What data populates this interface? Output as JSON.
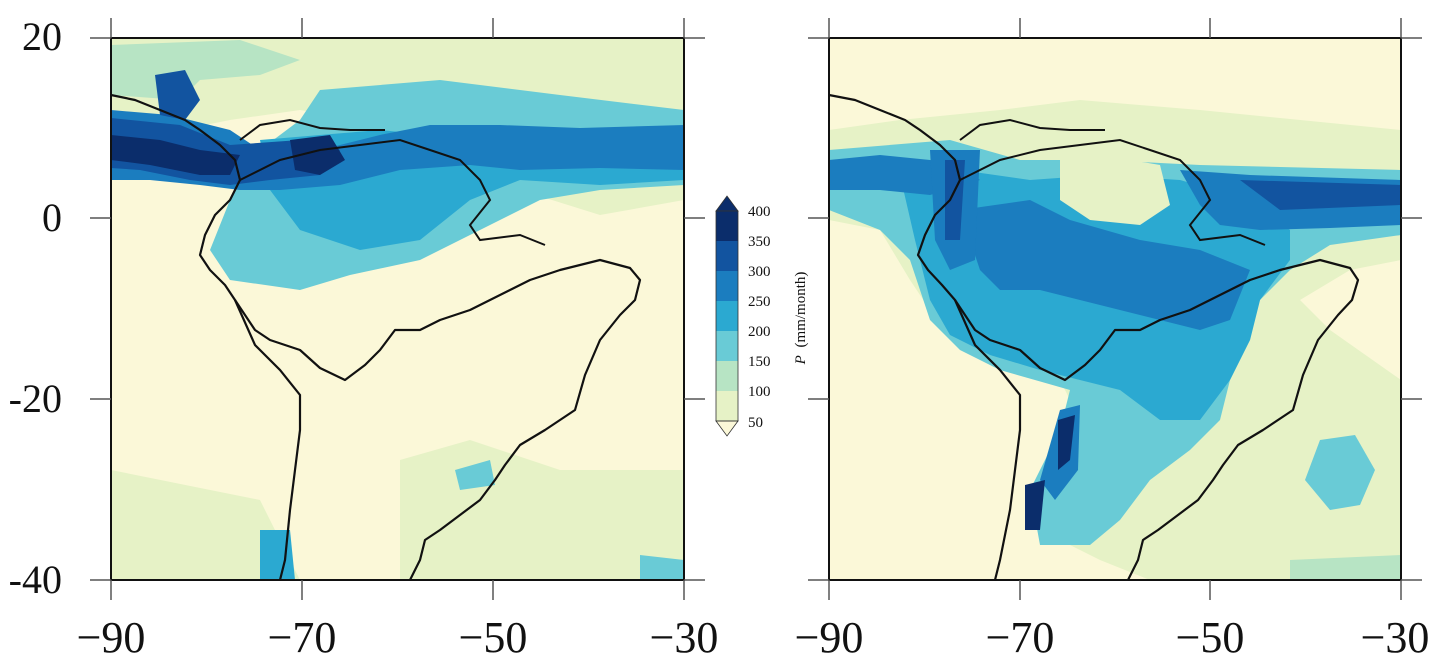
{
  "chart_data": [
    {
      "type": "heatmap",
      "panel": "left",
      "x_ticks": [
        "−90",
        "−70",
        "−50",
        "−30"
      ],
      "y_ticks": [
        "20",
        "0",
        "-20",
        "-40"
      ],
      "xlim": [
        -90,
        -30
      ],
      "ylim": [
        -40,
        20
      ],
      "grid": false
    },
    {
      "type": "heatmap",
      "panel": "right",
      "x_ticks": [
        "−90",
        "−70",
        "−50",
        "−30"
      ],
      "xlim": [
        -90,
        -30
      ],
      "ylim": [
        -40,
        20
      ],
      "grid": false
    }
  ],
  "colorbar": {
    "label_italic": "P",
    "label_units": "(mm/month)",
    "levels": [
      "400",
      "350",
      "300",
      "250",
      "200",
      "150",
      "100",
      "50"
    ],
    "colors": [
      "#0b2d6b",
      "#1254a0",
      "#1b7dbf",
      "#2ba9d1",
      "#69cbd6",
      "#b7e4c4",
      "#e6f2c6",
      "#fbf8d8"
    ]
  }
}
